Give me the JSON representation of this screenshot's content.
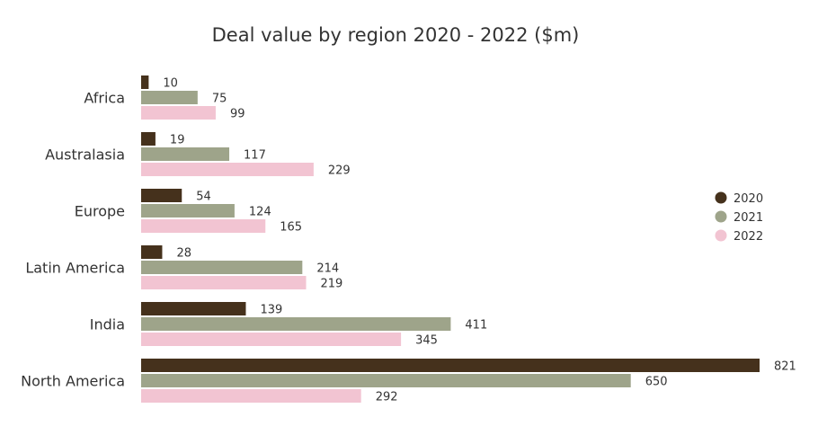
{
  "chart_data": {
    "type": "bar",
    "orientation": "horizontal",
    "title": "Deal value by region 2020 - 2022 ($m)",
    "xlabel": "",
    "ylabel": "",
    "xlim": [
      0,
      821
    ],
    "grid": false,
    "legend_position": "right",
    "categories": [
      "Africa",
      "Australasia",
      "Europe",
      "Latin America",
      "India",
      "North America"
    ],
    "series": [
      {
        "name": "2020",
        "color": "#45311c",
        "values": [
          10,
          19,
          54,
          28,
          139,
          821
        ]
      },
      {
        "name": "2021",
        "color": "#9ea48a",
        "values": [
          75,
          117,
          124,
          214,
          411,
          650
        ]
      },
      {
        "name": "2022",
        "color": "#f2c4d2",
        "values": [
          99,
          229,
          165,
          219,
          345,
          292
        ]
      }
    ]
  }
}
